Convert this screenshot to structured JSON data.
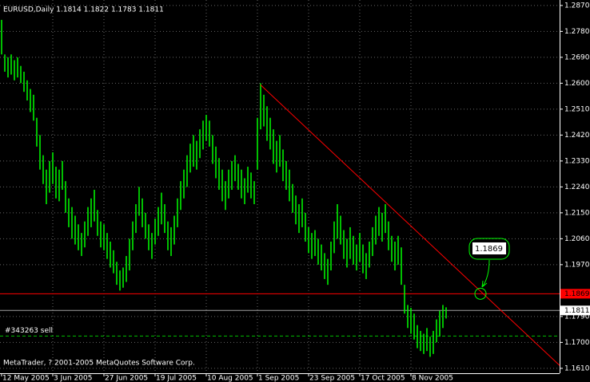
{
  "chart_data": {
    "type": "ohlc",
    "title": "EURUSD,Daily  1.1814 1.1822 1.1783 1.1811",
    "footer": "MetaTrader, ? 2001-2005 MetaQuotes Software Corp.",
    "color": "#00ff00",
    "grid": true,
    "ylim": [
      1.1593,
      1.2889
    ],
    "yticks": [
      {
        "value": 1.287,
        "label": "1.2870"
      },
      {
        "value": 1.278,
        "label": "1.2780"
      },
      {
        "value": 1.269,
        "label": "1.2690"
      },
      {
        "value": 1.26,
        "label": "1.2600"
      },
      {
        "value": 1.251,
        "label": "1.2510"
      },
      {
        "value": 1.242,
        "label": "1.2420"
      },
      {
        "value": 1.233,
        "label": "1.2330"
      },
      {
        "value": 1.224,
        "label": "1.2240"
      },
      {
        "value": 1.215,
        "label": "1.2150"
      },
      {
        "value": 1.206,
        "label": "1.2060"
      },
      {
        "value": 1.197,
        "label": "1.1970"
      },
      {
        "value": 1.179,
        "label": "1.1790"
      },
      {
        "value": 1.17,
        "label": "1.1700"
      },
      {
        "value": 1.161,
        "label": "1.1610"
      }
    ],
    "categories": [
      "12 May 2005",
      null,
      null,
      null,
      null,
      null,
      null,
      null,
      null,
      null,
      null,
      null,
      null,
      null,
      null,
      null,
      "3 Jun 2005",
      null,
      null,
      null,
      null,
      null,
      null,
      null,
      null,
      null,
      null,
      null,
      null,
      null,
      null,
      null,
      "27 Jun 2005",
      null,
      null,
      null,
      null,
      null,
      null,
      null,
      null,
      null,
      null,
      null,
      null,
      null,
      null,
      null,
      "19 Jul 2005",
      null,
      null,
      null,
      null,
      null,
      null,
      null,
      null,
      null,
      null,
      null,
      null,
      null,
      null,
      null,
      "10 Aug 2005",
      null,
      null,
      null,
      null,
      null,
      null,
      null,
      null,
      null,
      null,
      null,
      null,
      null,
      null,
      null,
      "1 Sep 2005",
      null,
      null,
      null,
      null,
      null,
      null,
      null,
      null,
      null,
      null,
      null,
      null,
      null,
      null,
      null,
      "23 Sep 2005",
      null,
      null,
      null,
      null,
      null,
      null,
      null,
      null,
      null,
      null,
      null,
      null,
      null,
      null,
      null,
      "17 Oct 2005",
      null,
      null,
      null,
      null,
      null,
      null,
      null,
      null,
      null,
      null,
      null,
      null,
      null,
      null,
      null,
      "8 Nov 2005",
      null,
      null,
      null,
      null,
      null,
      null,
      null,
      null,
      null,
      null,
      null
    ],
    "high": [
      1.282,
      1.27,
      1.269,
      1.27,
      1.268,
      1.269,
      1.266,
      1.264,
      1.261,
      1.258,
      1.256,
      1.248,
      1.242,
      1.235,
      1.23,
      1.233,
      1.236,
      1.231,
      1.23,
      1.233,
      1.226,
      1.22,
      1.217,
      1.214,
      1.211,
      1.208,
      1.212,
      1.217,
      1.22,
      1.223,
      1.216,
      1.212,
      1.211,
      1.208,
      1.205,
      1.202,
      1.198,
      1.195,
      1.196,
      1.2,
      1.206,
      1.212,
      1.218,
      1.224,
      1.22,
      1.215,
      1.211,
      1.208,
      1.213,
      1.217,
      1.222,
      1.218,
      1.212,
      1.21,
      1.214,
      1.22,
      1.226,
      1.23,
      1.235,
      1.239,
      1.242,
      1.24,
      1.244,
      1.247,
      1.249,
      1.247,
      1.242,
      1.238,
      1.234,
      1.23,
      1.226,
      1.23,
      1.233,
      1.235,
      1.232,
      1.23,
      1.227,
      1.231,
      1.229,
      1.226,
      1.248,
      1.26,
      1.256,
      1.252,
      1.248,
      1.244,
      1.24,
      1.242,
      1.237,
      1.233,
      1.23,
      1.225,
      1.221,
      1.218,
      1.22,
      1.215,
      1.21,
      1.208,
      1.209,
      1.206,
      1.204,
      1.201,
      1.199,
      1.205,
      1.212,
      1.218,
      1.214,
      1.209,
      1.206,
      1.21,
      1.207,
      1.204,
      1.208,
      1.204,
      1.201,
      1.205,
      1.21,
      1.214,
      1.217,
      1.215,
      1.218,
      1.212,
      1.207,
      1.205,
      1.207,
      1.203,
      1.19,
      1.183,
      1.182,
      1.18,
      1.176,
      1.174,
      1.173,
      1.175,
      1.172,
      1.174,
      1.178,
      1.181,
      1.183,
      1.1822
    ],
    "low": [
      1.27,
      1.264,
      1.262,
      1.263,
      1.261,
      1.262,
      1.26,
      1.257,
      1.254,
      1.25,
      1.247,
      1.238,
      1.23,
      1.225,
      1.218,
      1.222,
      1.225,
      1.22,
      1.219,
      1.223,
      1.215,
      1.21,
      1.206,
      1.204,
      1.202,
      1.2,
      1.203,
      1.207,
      1.21,
      1.212,
      1.207,
      1.203,
      1.202,
      1.199,
      1.196,
      1.194,
      1.19,
      1.188,
      1.189,
      1.191,
      1.195,
      1.202,
      1.208,
      1.214,
      1.21,
      1.206,
      1.202,
      1.199,
      1.204,
      1.207,
      1.211,
      1.208,
      1.202,
      1.2,
      1.204,
      1.21,
      1.216,
      1.22,
      1.224,
      1.229,
      1.231,
      1.23,
      1.234,
      1.237,
      1.24,
      1.238,
      1.232,
      1.227,
      1.223,
      1.219,
      1.216,
      1.22,
      1.223,
      1.226,
      1.223,
      1.22,
      1.218,
      1.222,
      1.22,
      1.218,
      1.23,
      1.244,
      1.245,
      1.24,
      1.237,
      1.232,
      1.229,
      1.231,
      1.226,
      1.223,
      1.219,
      1.215,
      1.211,
      1.208,
      1.21,
      1.205,
      1.201,
      1.199,
      1.2,
      1.197,
      1.195,
      1.192,
      1.19,
      1.195,
      1.201,
      1.206,
      1.204,
      1.199,
      1.196,
      1.199,
      1.197,
      1.195,
      1.198,
      1.194,
      1.192,
      1.196,
      1.2,
      1.204,
      1.207,
      1.205,
      1.208,
      1.202,
      1.198,
      1.195,
      1.197,
      1.19,
      1.18,
      1.175,
      1.173,
      1.171,
      1.168,
      1.167,
      1.166,
      1.167,
      1.165,
      1.166,
      1.17,
      1.172,
      1.175,
      1.1783
    ],
    "hlines": [
      {
        "value": 1.1869,
        "color": "#ff0000"
      },
      {
        "value": 1.1811,
        "color": "#a0a0a0"
      },
      {
        "value": 1.1722,
        "color": "#00c000",
        "label": "#343263 sell"
      }
    ],
    "trendline": {
      "x": [
        81,
        174.5
      ],
      "y": [
        1.2594,
        1.162
      ],
      "color": "#ff0000"
    },
    "annotation": "1.1869"
  }
}
